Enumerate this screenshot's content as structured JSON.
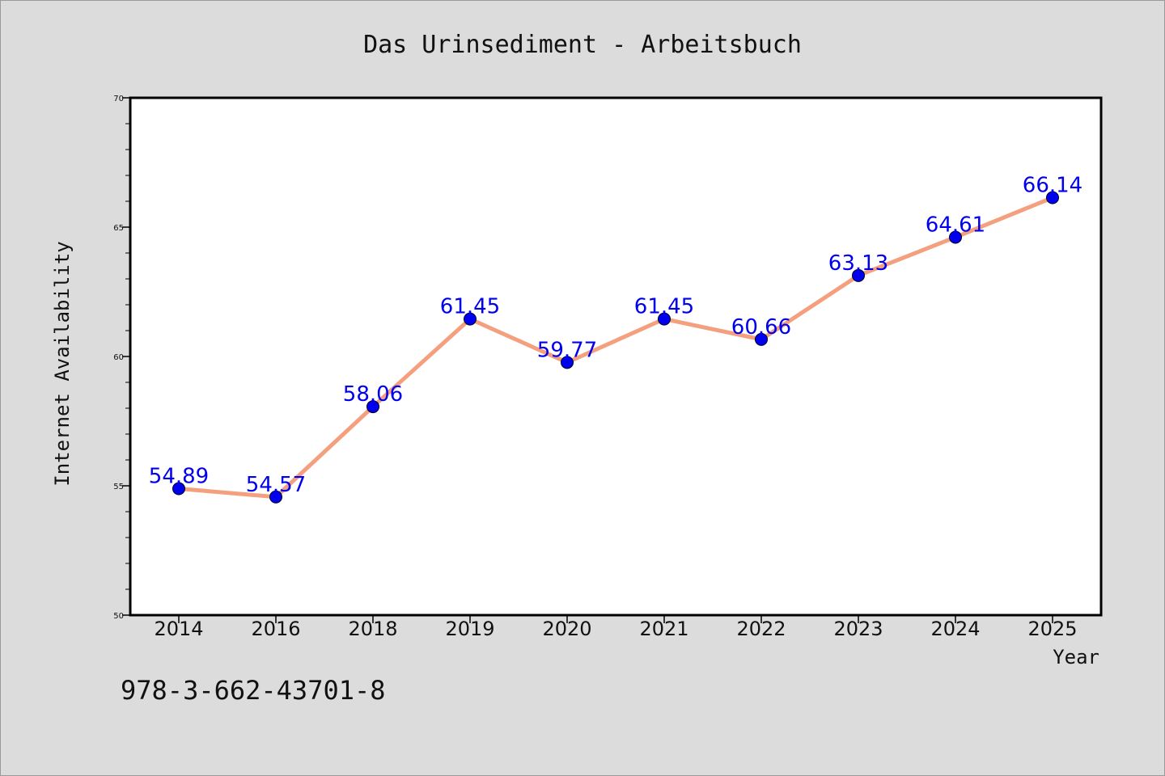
{
  "chart_data": {
    "type": "line",
    "title": "Das Urinsediment - Arbeitsbuch",
    "xlabel": "Year",
    "ylabel": "Internet Availability",
    "categories": [
      "2014",
      "2016",
      "2018",
      "2019",
      "2020",
      "2021",
      "2022",
      "2023",
      "2024",
      "2025"
    ],
    "values": [
      54.89,
      54.57,
      58.06,
      61.45,
      59.77,
      61.45,
      60.66,
      63.13,
      64.61,
      66.14
    ],
    "data_labels": [
      "54.89",
      "54.57",
      "58.06",
      "61.45",
      "59.77",
      "61.45",
      "60.66",
      "63.13",
      "64.61",
      "66.14"
    ],
    "ylim": [
      50,
      70
    ],
    "yticks": [
      50,
      55,
      60,
      65,
      70
    ],
    "ytick_labels": [
      "50",
      "55",
      "60",
      "65",
      "70"
    ],
    "grid": false,
    "legend": "none",
    "colors": {
      "line": "#f4a07e",
      "marker": "#0000ee",
      "label": "#0000ee",
      "background": "#dcdcdc",
      "plot_background": "#ffffff"
    }
  },
  "footer": {
    "isbn": "978-3-662-43701-8"
  }
}
